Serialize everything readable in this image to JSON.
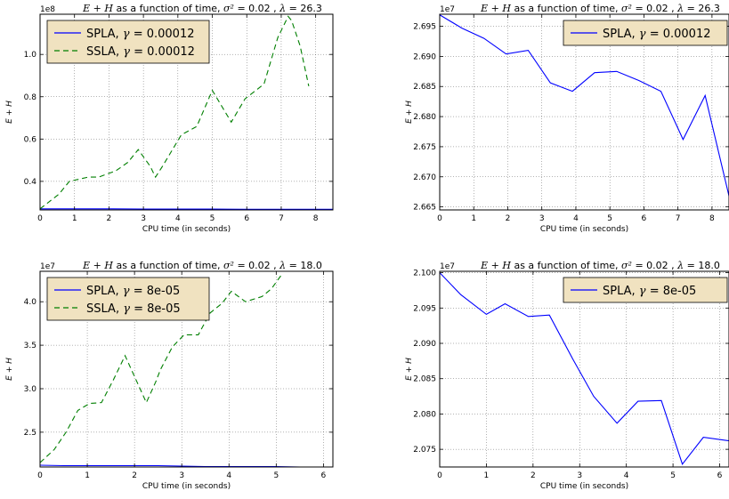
{
  "figure": {
    "xlabel": "CPU time (in seconds)",
    "ylabel": "E + H"
  },
  "chart_data": [
    {
      "type": "line",
      "title": "E + H as a function of time, σ² = 0.02 , λ = 26.3",
      "xlabel": "CPU time (in seconds)",
      "ylabel": "E + H",
      "offset_text": "1e8",
      "xlim": [
        0,
        8.5
      ],
      "ylim": [
        0.265,
        1.19
      ],
      "xticks": [
        0,
        1,
        2,
        3,
        4,
        5,
        6,
        7,
        8
      ],
      "xtick_labels": [
        "0",
        "1",
        "2",
        "3",
        "4",
        "5",
        "6",
        "7",
        "8"
      ],
      "yticks": [
        0.4,
        0.6,
        0.8,
        1.0
      ],
      "ytick_labels": [
        "0.4",
        "0.6",
        "0.8",
        "1.0"
      ],
      "grid": true,
      "legend": "top-left",
      "series": [
        {
          "name": "SPLA, γ = 0.00012",
          "color": "#0000ff",
          "style": "solid",
          "x": [
            0,
            0.5,
            1,
            2,
            3,
            4,
            5,
            6,
            7,
            7.8,
            8.5
          ],
          "y": [
            0.27,
            0.27,
            0.27,
            0.27,
            0.269,
            0.269,
            0.269,
            0.268,
            0.268,
            0.268,
            0.268
          ]
        },
        {
          "name": "SSLA, γ = 0.00012",
          "color": "#007f00",
          "style": "dashed",
          "x": [
            0,
            0.55,
            0.85,
            1.4,
            1.7,
            2.2,
            2.55,
            2.85,
            3.2,
            3.35,
            3.55,
            4.1,
            4.55,
            5.0,
            5.55,
            5.95,
            6.5,
            6.9,
            7.2,
            7.3,
            7.55,
            7.8
          ],
          "y": [
            0.27,
            0.34,
            0.4,
            0.42,
            0.42,
            0.45,
            0.49,
            0.55,
            0.47,
            0.42,
            0.47,
            0.62,
            0.66,
            0.83,
            0.68,
            0.79,
            0.86,
            1.08,
            1.18,
            1.16,
            1.04,
            0.85
          ]
        }
      ]
    },
    {
      "type": "line",
      "title": "E + H as a function of time, σ² = 0.02 , λ = 26.3",
      "xlabel": "CPU time (in seconds)",
      "ylabel": "E + H",
      "offset_text": "1e7",
      "xlim": [
        0,
        8.5
      ],
      "ylim": [
        2.6645,
        2.697
      ],
      "xticks": [
        0,
        1,
        2,
        3,
        4,
        5,
        6,
        7,
        8
      ],
      "xtick_labels": [
        "0",
        "1",
        "2",
        "3",
        "4",
        "5",
        "6",
        "7",
        "8"
      ],
      "yticks": [
        2.665,
        2.67,
        2.675,
        2.68,
        2.685,
        2.69,
        2.695
      ],
      "ytick_labels": [
        "2.665",
        "2.670",
        "2.675",
        "2.680",
        "2.685",
        "2.690",
        "2.695"
      ],
      "grid": true,
      "legend": "top-right",
      "series": [
        {
          "name": "SPLA, γ = 0.00012",
          "color": "#0000ff",
          "style": "solid",
          "x": [
            0,
            0.65,
            1.3,
            1.95,
            2.6,
            3.25,
            3.9,
            4.55,
            5.2,
            5.85,
            6.5,
            7.15,
            7.8,
            8.5
          ],
          "y": [
            2.6969,
            2.6947,
            2.693,
            2.6904,
            2.691,
            2.6856,
            2.6842,
            2.6873,
            2.6875,
            2.686,
            2.6842,
            2.6762,
            2.6835,
            2.6668
          ]
        }
      ]
    },
    {
      "type": "line",
      "title": "E + H as a function of time, σ² = 0.02 , λ = 18.0",
      "xlabel": "CPU time (in seconds)",
      "ylabel": "E + H",
      "offset_text": "1e7",
      "xlim": [
        0,
        6.2
      ],
      "ylim": [
        2.1,
        4.35
      ],
      "xticks": [
        0,
        1,
        2,
        3,
        4,
        5,
        6
      ],
      "xtick_labels": [
        "0",
        "1",
        "2",
        "3",
        "4",
        "5",
        "6"
      ],
      "yticks": [
        2.5,
        3.0,
        3.5,
        4.0
      ],
      "ytick_labels": [
        "2.5",
        "3.0",
        "3.5",
        "4.0"
      ],
      "grid": true,
      "legend": "top-left",
      "series": [
        {
          "name": "SPLA, γ = 8e-05",
          "color": "#0000ff",
          "style": "solid",
          "x": [
            0,
            0.5,
            1,
            2,
            2.5,
            3,
            3.5,
            4,
            5,
            5.5,
            6.2
          ],
          "y": [
            2.12,
            2.115,
            2.115,
            2.115,
            2.115,
            2.11,
            2.105,
            2.105,
            2.105,
            2.1,
            2.1
          ]
        },
        {
          "name": "SSLA, γ = 8e-05",
          "color": "#007f00",
          "style": "dashed",
          "x": [
            0,
            0.3,
            0.55,
            0.8,
            1.05,
            1.3,
            1.55,
            1.8,
            2.05,
            2.25,
            2.45,
            2.55,
            2.8,
            3.05,
            3.35,
            3.6,
            3.85,
            4.05,
            4.35,
            4.7,
            4.9,
            5.1
          ],
          "y": [
            2.15,
            2.3,
            2.5,
            2.75,
            2.83,
            2.84,
            3.1,
            3.38,
            3.08,
            2.84,
            3.08,
            3.22,
            3.48,
            3.62,
            3.62,
            3.87,
            3.98,
            4.12,
            4.0,
            4.06,
            4.15,
            4.3
          ]
        }
      ]
    },
    {
      "type": "line",
      "title": "E + H as a function of time, σ² = 0.02 , λ = 18.0",
      "xlabel": "CPU time (in seconds)",
      "ylabel": "E + H",
      "offset_text": "1e7",
      "xlim": [
        0,
        6.2
      ],
      "ylim": [
        2.0725,
        2.1002
      ],
      "xticks": [
        0,
        1,
        2,
        3,
        4,
        5,
        6
      ],
      "xtick_labels": [
        "0",
        "1",
        "2",
        "3",
        "4",
        "5",
        "6"
      ],
      "yticks": [
        2.075,
        2.08,
        2.085,
        2.09,
        2.095,
        2.1
      ],
      "ytick_labels": [
        "2.075",
        "2.080",
        "2.085",
        "2.090",
        "2.095",
        "2.100"
      ],
      "grid": true,
      "legend": "top-right",
      "series": [
        {
          "name": "SPLA, γ = 8e-05",
          "color": "#0000ff",
          "style": "solid",
          "x": [
            0,
            0.45,
            1.0,
            1.4,
            1.9,
            2.35,
            2.85,
            3.3,
            3.8,
            4.25,
            4.75,
            5.2,
            5.65,
            6.2
          ],
          "y": [
            2.1,
            2.0969,
            2.0941,
            2.0956,
            2.0938,
            2.094,
            2.0878,
            2.0825,
            2.0787,
            2.0818,
            2.0819,
            2.0729,
            2.0767,
            2.0762
          ]
        }
      ]
    }
  ]
}
